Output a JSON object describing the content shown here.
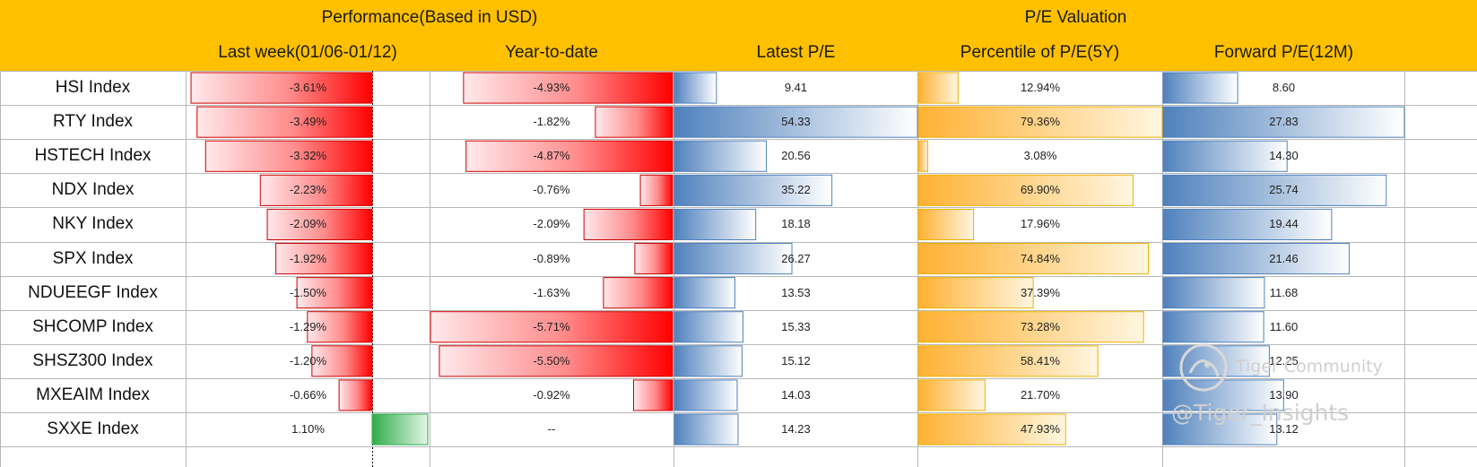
{
  "headers": {
    "group_performance": "Performance(Based in USD)",
    "group_valuation": "P/E Valuation",
    "col_last_week": "Last week(01/06-01/12)",
    "col_ytd": "Year-to-date",
    "col_latest_pe": "Latest P/E",
    "col_pe_percentile": "Percentile of P/E(5Y)",
    "col_forward_pe": "Forward P/E(12M)"
  },
  "chart_data": {
    "type": "table",
    "title": "Performance(Based in USD) / P/E Valuation",
    "categories": [
      "HSI Index",
      "RTY Index",
      "HSTECH Index",
      "NDX Index",
      "NKY Index",
      "SPX Index",
      "NDUEEGF Index",
      "SHCOMP Index",
      "SHSZ300 Index",
      "MXEAIM Index",
      "SXXE Index"
    ],
    "series": [
      {
        "name": "Last week(01/06-01/12)",
        "unit": "%",
        "values": [
          -3.61,
          -3.49,
          -3.32,
          -2.23,
          -2.09,
          -1.92,
          -1.5,
          -1.29,
          -1.2,
          -0.66,
          1.1
        ],
        "labels": [
          "-3.61%",
          "-3.49%",
          "-3.32%",
          "-2.23%",
          "-2.09%",
          "-1.92%",
          "-1.50%",
          "-1.29%",
          "-1.20%",
          "-0.66%",
          "1.10%"
        ],
        "range": [
          -3.7,
          1.1
        ]
      },
      {
        "name": "Year-to-date",
        "unit": "%",
        "values": [
          -4.93,
          -1.82,
          -4.87,
          -0.76,
          -2.09,
          -0.89,
          -1.63,
          -5.71,
          -5.5,
          -0.92,
          null
        ],
        "labels": [
          "-4.93%",
          "-1.82%",
          "-4.87%",
          "-0.76%",
          "-2.09%",
          "-0.89%",
          "-1.63%",
          "-5.71%",
          "-5.50%",
          "-0.92%",
          "--"
        ],
        "range": [
          -5.71,
          0
        ]
      },
      {
        "name": "Latest P/E",
        "values": [
          9.41,
          54.33,
          20.56,
          35.22,
          18.18,
          26.27,
          13.53,
          15.33,
          15.12,
          14.03,
          14.23
        ],
        "labels": [
          "9.41",
          "54.33",
          "20.56",
          "35.22",
          "18.18",
          "26.27",
          "13.53",
          "15.33",
          "15.12",
          "14.03",
          "14.23"
        ],
        "range": [
          0,
          54.33
        ]
      },
      {
        "name": "Percentile of P/E(5Y)",
        "unit": "%",
        "values": [
          12.94,
          79.36,
          3.08,
          69.9,
          17.96,
          74.84,
          37.39,
          73.28,
          58.41,
          21.7,
          47.93
        ],
        "labels": [
          "12.94%",
          "79.36%",
          "3.08%",
          "69.90%",
          "17.96%",
          "74.84%",
          "37.39%",
          "73.28%",
          "58.41%",
          "21.70%",
          "47.93%"
        ],
        "range": [
          0,
          79.36
        ]
      },
      {
        "name": "Forward P/E(12M)",
        "values": [
          8.6,
          27.83,
          14.3,
          25.74,
          19.44,
          21.46,
          11.68,
          11.6,
          12.25,
          13.9,
          13.12
        ],
        "labels": [
          "8.60",
          "27.83",
          "14.30",
          "25.74",
          "19.44",
          "21.46",
          "11.68",
          "11.60",
          "12.25",
          "13.90",
          "13.12"
        ],
        "range": [
          0,
          27.83
        ]
      }
    ]
  },
  "watermark": {
    "brand": "Tiger Community",
    "handle": "@Tiger_Insights"
  },
  "colors": {
    "header": "#FFC000",
    "neg_red": "#FF0000",
    "pos_green": "#2EAD4B",
    "pe_blue": "#4F81BD",
    "pct_orange": "#FFB133"
  }
}
